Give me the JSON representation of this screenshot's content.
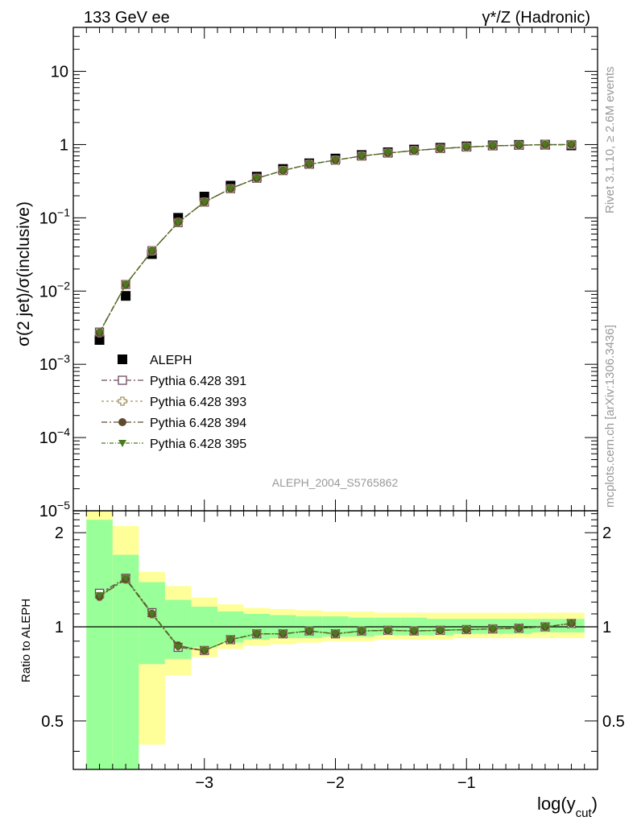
{
  "header": {
    "left": "133 GeV ee",
    "right": "γ*/Z (Hadronic)"
  },
  "side": {
    "rivet": "Rivet 3.1.10, ≥ 2.6M events",
    "mcplots": "mcplots.cern.ch [arXiv:1306.3436]"
  },
  "chart_data": {
    "type": "scatter",
    "ylabel_main": "σ(2 jet)/σ(inclusive)",
    "ylabel_ratio": "Ratio to ALEPH",
    "xlabel": "log(y_cut)",
    "xlim": [
      -4.0,
      0.0
    ],
    "ylim_main": [
      -5.0,
      1.6
    ],
    "y_scale_main": "log",
    "ylim_ratio": [
      0.35,
      2.35
    ],
    "y_scale_ratio": "log",
    "x_ticks": [
      -3,
      -2,
      -1
    ],
    "analysis_label": "ALEPH_2004_S5765862",
    "legend_position": "lower-left",
    "x": [
      -3.8,
      -3.6,
      -3.4,
      -3.2,
      -3.0,
      -2.8,
      -2.6,
      -2.4,
      -2.2,
      -2.0,
      -1.8,
      -1.6,
      -1.4,
      -1.2,
      -1.0,
      -0.8,
      -0.6,
      -0.4,
      -0.2
    ],
    "data": {
      "name": "ALEPH",
      "values": [
        0.00215,
        0.0086,
        0.032,
        0.1,
        0.195,
        0.275,
        0.365,
        0.465,
        0.555,
        0.645,
        0.72,
        0.785,
        0.855,
        0.905,
        0.945,
        0.975,
        0.99,
        0.997,
        0.974
      ]
    },
    "bands": {
      "edges": [
        -3.9,
        -3.7,
        -3.5,
        -3.3,
        -3.1,
        -2.9,
        -2.7,
        -2.5,
        -2.3,
        -2.1,
        -1.9,
        -1.7,
        -1.5,
        -1.3,
        -1.1,
        -0.9,
        -0.7,
        -0.5,
        -0.3,
        -0.1
      ],
      "stat_low": [
        0.35,
        0.35,
        0.76,
        0.79,
        0.86,
        0.89,
        0.91,
        0.92,
        0.92,
        0.93,
        0.93,
        0.94,
        0.94,
        0.94,
        0.95,
        0.95,
        0.95,
        0.96,
        0.96
      ],
      "stat_high": [
        2.2,
        1.7,
        1.39,
        1.22,
        1.16,
        1.12,
        1.1,
        1.09,
        1.08,
        1.08,
        1.07,
        1.07,
        1.07,
        1.06,
        1.06,
        1.06,
        1.06,
        1.06,
        1.06
      ],
      "total_low": [
        0.35,
        0.35,
        0.42,
        0.7,
        0.8,
        0.85,
        0.87,
        0.88,
        0.89,
        0.9,
        0.9,
        0.91,
        0.91,
        0.91,
        0.92,
        0.92,
        0.92,
        0.92,
        0.92
      ],
      "total_high": [
        2.35,
        2.1,
        1.5,
        1.35,
        1.24,
        1.18,
        1.15,
        1.14,
        1.13,
        1.12,
        1.12,
        1.11,
        1.11,
        1.11,
        1.11,
        1.11,
        1.11,
        1.11,
        1.11
      ],
      "stat_color": "#99ff99",
      "total_color": "#ffff99"
    },
    "series": [
      {
        "name": "Pythia 6.428 391",
        "color": "#6e4a5f",
        "marker": "open-square",
        "ratio": [
          1.28,
          1.43,
          1.11,
          0.86,
          0.84,
          0.91,
          0.95,
          0.95,
          0.97,
          0.95,
          0.97,
          0.975,
          0.97,
          0.975,
          0.98,
          0.985,
          0.99,
          1.0,
          1.025
        ]
      },
      {
        "name": "Pythia 6.428 393",
        "color": "#a39262",
        "marker": "open-cross",
        "ratio": [
          1.25,
          1.42,
          1.1,
          0.87,
          0.84,
          0.91,
          0.95,
          0.95,
          0.97,
          0.95,
          0.97,
          0.975,
          0.97,
          0.975,
          0.98,
          0.985,
          0.99,
          1.0,
          1.025
        ]
      },
      {
        "name": "Pythia 6.428 394",
        "color": "#604a2e",
        "marker": "filled-circle",
        "ratio": [
          1.25,
          1.42,
          1.1,
          0.87,
          0.84,
          0.91,
          0.95,
          0.95,
          0.97,
          0.95,
          0.97,
          0.975,
          0.97,
          0.975,
          0.98,
          0.985,
          0.99,
          1.0,
          1.025
        ]
      },
      {
        "name": "Pythia 6.428 395",
        "color": "#4a7a1e",
        "marker": "filled-triangle-down",
        "ratio": [
          1.26,
          1.43,
          1.1,
          0.86,
          0.84,
          0.91,
          0.95,
          0.95,
          0.97,
          0.95,
          0.97,
          0.975,
          0.97,
          0.975,
          0.98,
          0.985,
          0.99,
          1.0,
          1.025
        ]
      }
    ]
  }
}
